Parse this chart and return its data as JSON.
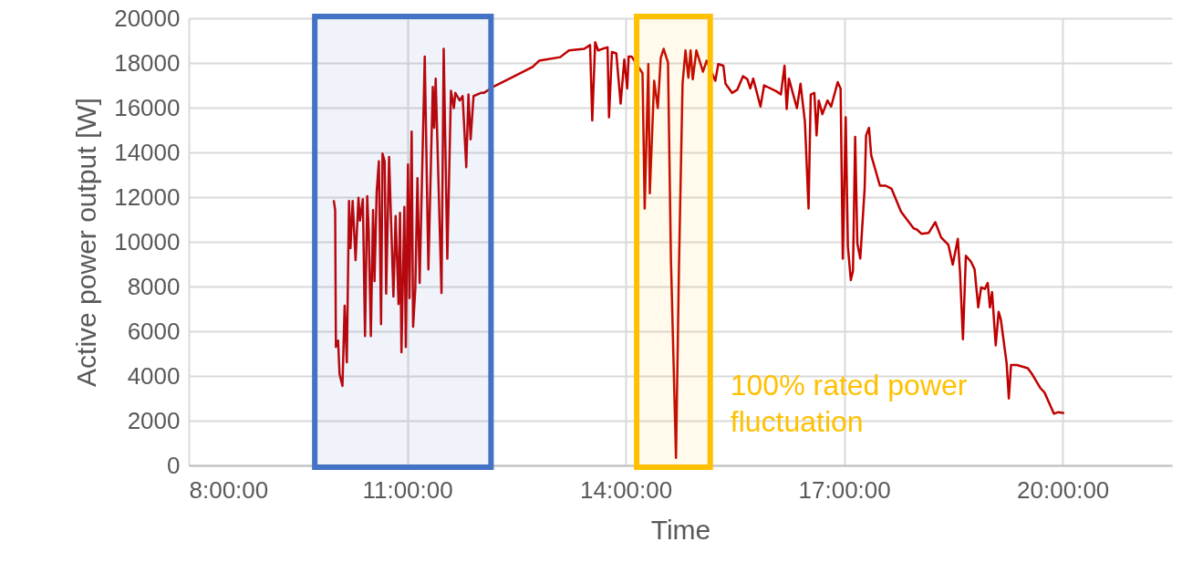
{
  "chart_data": {
    "type": "line",
    "xlabel": "Time",
    "ylabel": "Active power output [W]",
    "xlim": [
      8,
      21.5
    ],
    "xticks": [
      {
        "value": 8,
        "label": "8:00:00"
      },
      {
        "value": 11,
        "label": "11:00:00"
      },
      {
        "value": 14,
        "label": "14:00:00"
      },
      {
        "value": 17,
        "label": "17:00:00"
      },
      {
        "value": 20,
        "label": "20:00:00"
      }
    ],
    "ylim": [
      0,
      20000
    ],
    "yticks": [
      0,
      2000,
      4000,
      6000,
      8000,
      10000,
      12000,
      14000,
      16000,
      18000,
      20000
    ],
    "grid": true,
    "marker": "none",
    "line_style": "solid",
    "series": [
      {
        "color": "#c00000",
        "x": [
          9.99,
          10.01,
          10.02,
          10.05,
          10.07,
          10.11,
          10.14,
          10.17,
          10.2,
          10.22,
          10.25,
          10.29,
          10.33,
          10.35,
          10.39,
          10.42,
          10.45,
          10.47,
          10.5,
          10.53,
          10.55,
          10.58,
          10.61,
          10.64,
          10.66,
          10.69,
          10.71,
          10.75,
          10.81,
          10.84,
          10.88,
          10.9,
          10.92,
          10.96,
          10.98,
          11.01,
          11.03,
          11.06,
          11.08,
          11.11,
          11.14,
          11.17,
          11.24,
          11.29,
          11.35,
          11.37,
          11.39,
          11.47,
          11.5,
          11.55,
          11.6,
          11.64,
          11.66,
          11.72,
          11.76,
          11.81,
          11.84,
          11.87,
          11.91,
          12.01,
          12.05,
          12.18,
          12.43,
          12.72,
          12.81,
          13.1,
          13.22,
          13.43,
          13.51,
          13.54,
          13.58,
          13.62,
          13.68,
          13.75,
          13.77,
          13.81,
          13.87,
          13.93,
          13.98,
          14.02,
          14.04,
          14.08,
          14.23,
          14.26,
          14.31,
          14.33,
          14.39,
          14.44,
          14.48,
          14.52,
          14.58,
          14.62,
          14.69,
          14.73,
          14.78,
          14.82,
          14.86,
          14.89,
          14.92,
          14.97,
          15.06,
          15.11,
          15.23,
          15.27,
          15.34,
          15.37,
          15.46,
          15.53,
          15.61,
          15.67,
          15.71,
          15.75,
          15.85,
          15.9,
          16.07,
          16.13,
          16.18,
          16.21,
          16.24,
          16.35,
          16.4,
          16.46,
          16.51,
          16.54,
          16.59,
          16.62,
          16.65,
          16.7,
          16.77,
          16.82,
          16.91,
          16.95,
          16.98,
          17.02,
          17.05,
          17.09,
          17.12,
          17.15,
          17.18,
          17.22,
          17.28,
          17.3,
          17.34,
          17.37,
          17.49,
          17.57,
          17.65,
          17.78,
          17.95,
          18,
          18.06,
          18.16,
          18.25,
          18.33,
          18.43,
          18.49,
          18.56,
          18.59,
          18.63,
          18.67,
          18.74,
          18.79,
          18.84,
          18.88,
          18.93,
          18.97,
          19,
          19.03,
          19.08,
          19.12,
          19.15,
          19.23,
          19.26,
          19.29,
          19.37,
          19.52,
          19.58,
          19.69,
          19.75,
          19.88,
          19.94,
          20.02
        ],
        "values": [
          11860,
          11420,
          5300,
          5580,
          4080,
          3550,
          7140,
          4610,
          11830,
          9720,
          11830,
          9180,
          11970,
          10950,
          11910,
          5790,
          12040,
          10540,
          5790,
          11420,
          8240,
          12240,
          13600,
          6320,
          13950,
          13600,
          7680,
          13800,
          7550,
          11150,
          7220,
          11300,
          5060,
          11560,
          5300,
          13460,
          7480,
          14930,
          6200,
          7890,
          12850,
          8160,
          18290,
          8770,
          16930,
          15100,
          17300,
          7710,
          18630,
          9250,
          16760,
          15980,
          16660,
          16320,
          16520,
          13340,
          16590,
          14580,
          16520,
          16660,
          16660,
          16930,
          17340,
          17820,
          18100,
          18260,
          18560,
          18630,
          18800,
          15430,
          18930,
          18560,
          18630,
          18700,
          15570,
          18490,
          18430,
          16180,
          18150,
          16860,
          18290,
          18290,
          17540,
          11490,
          17950,
          12170,
          17200,
          15980,
          18220,
          18630,
          18020,
          9250,
          340,
          8770,
          17070,
          18560,
          17340,
          18560,
          17270,
          18560,
          17610,
          18100,
          17200,
          17950,
          17880,
          17070,
          16660,
          16800,
          17410,
          17270,
          16860,
          17300,
          16050,
          17000,
          16730,
          16590,
          17880,
          15940,
          17300,
          15980,
          17070,
          15370,
          11490,
          16590,
          16660,
          14760,
          16320,
          15710,
          16320,
          16050,
          17140,
          16860,
          9250,
          15570,
          9790,
          8290,
          8700,
          14690,
          9930,
          9250,
          12370,
          14760,
          15100,
          13870,
          12510,
          12510,
          12370,
          11350,
          10610,
          10540,
          10360,
          10400,
          10880,
          10200,
          9860,
          8980,
          10130,
          8630,
          5640,
          9380,
          9110,
          8770,
          7070,
          7960,
          7890,
          8160,
          7070,
          7750,
          5370,
          6870,
          6530,
          4560,
          2990,
          4490,
          4490,
          4350,
          4080,
          3470,
          3260,
          2310,
          2380,
          2340
        ]
      }
    ],
    "bands": [
      {
        "axis": "x",
        "from": 9.73,
        "to": 12.15,
        "color": "#4472c4"
      },
      {
        "axis": "x",
        "from": 14.15,
        "to": 15.16,
        "color": "#ffc000",
        "label": "100% rated power fluctuation"
      }
    ]
  }
}
